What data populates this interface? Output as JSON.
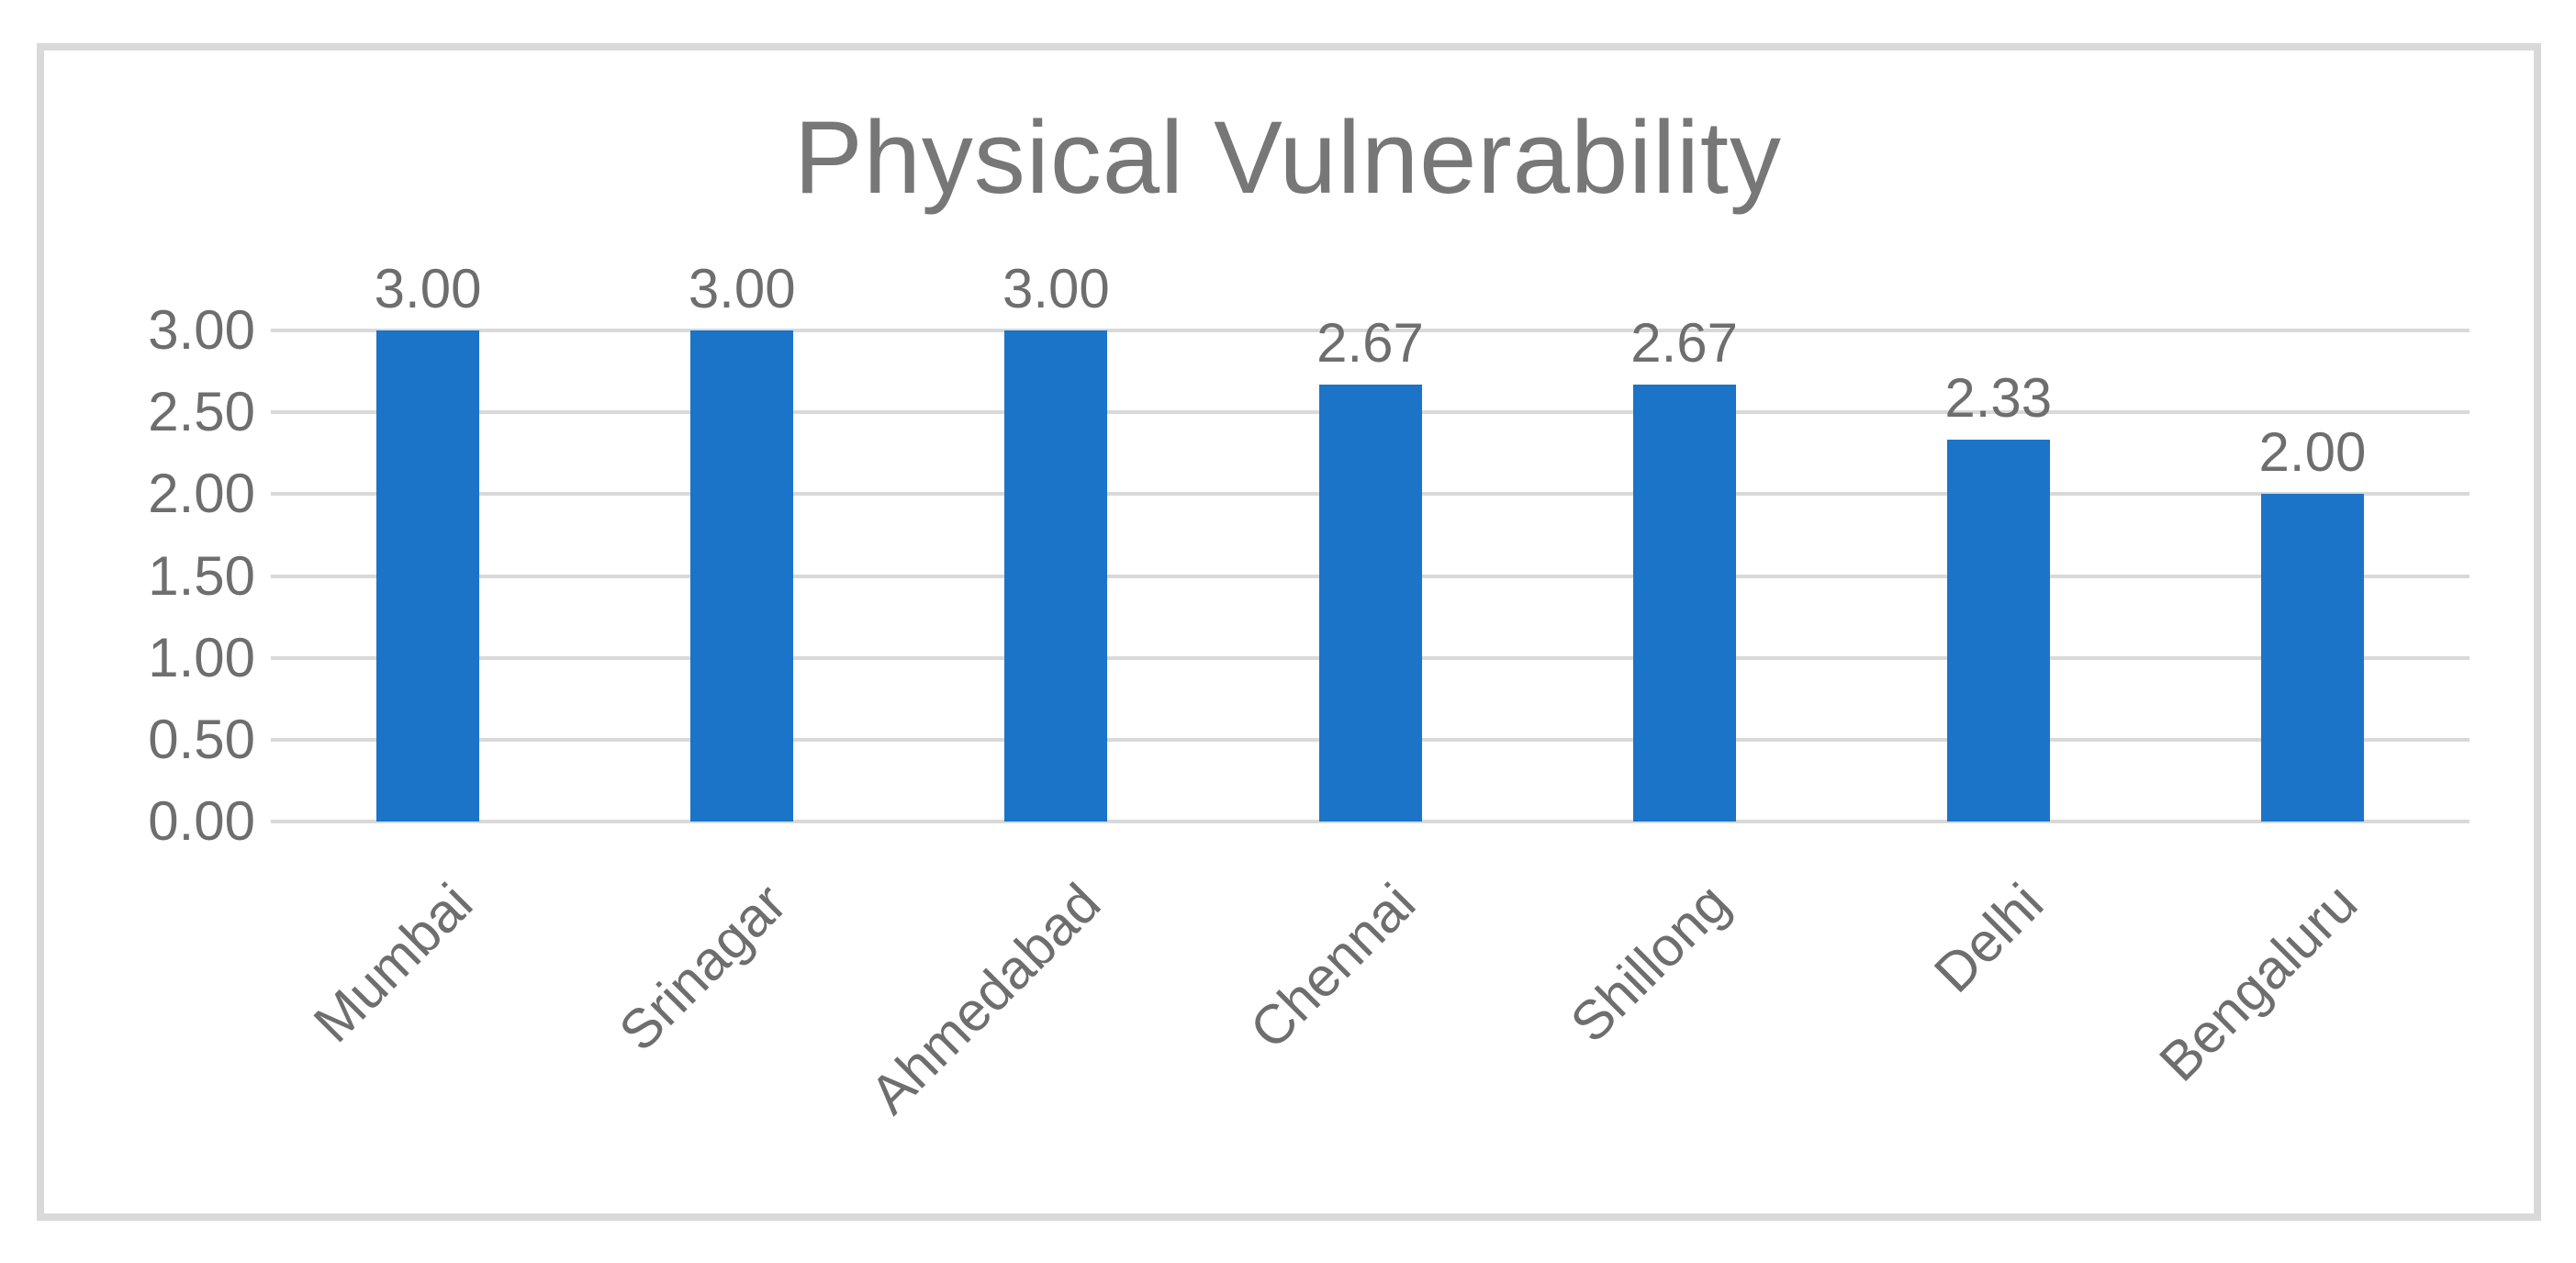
{
  "page": {
    "background_color": "#FFFFFF"
  },
  "chart_data": {
    "type": "bar",
    "title": "Physical Vulnerability",
    "categories": [
      "Mumbai",
      "Srinagar",
      "Ahmedabad",
      "Chennai",
      "Shillong",
      "Delhi",
      "Bengaluru"
    ],
    "values": [
      3.0,
      3.0,
      3.0,
      2.67,
      2.67,
      2.33,
      2.0
    ],
    "data_labels": [
      "3.00",
      "3.00",
      "3.00",
      "2.67",
      "2.67",
      "2.33",
      "2.00"
    ],
    "xlabel": "",
    "ylabel": "",
    "ylim": [
      0,
      3
    ],
    "y_tick_step": 0.5,
    "y_tick_labels": [
      "3.00",
      "2.50",
      "2.00",
      "1.50",
      "1.00",
      "0.50",
      "0.00"
    ],
    "grid": "horizontal",
    "legend": false,
    "category_label_rotation_deg": 45,
    "colors": {
      "bar": "#1B74C8",
      "gridline": "#D9D9D9",
      "frame_border": "#D9D9D9",
      "title_text": "#777777",
      "label_text": "#6E6E6E",
      "background": "#FFFFFF"
    }
  }
}
